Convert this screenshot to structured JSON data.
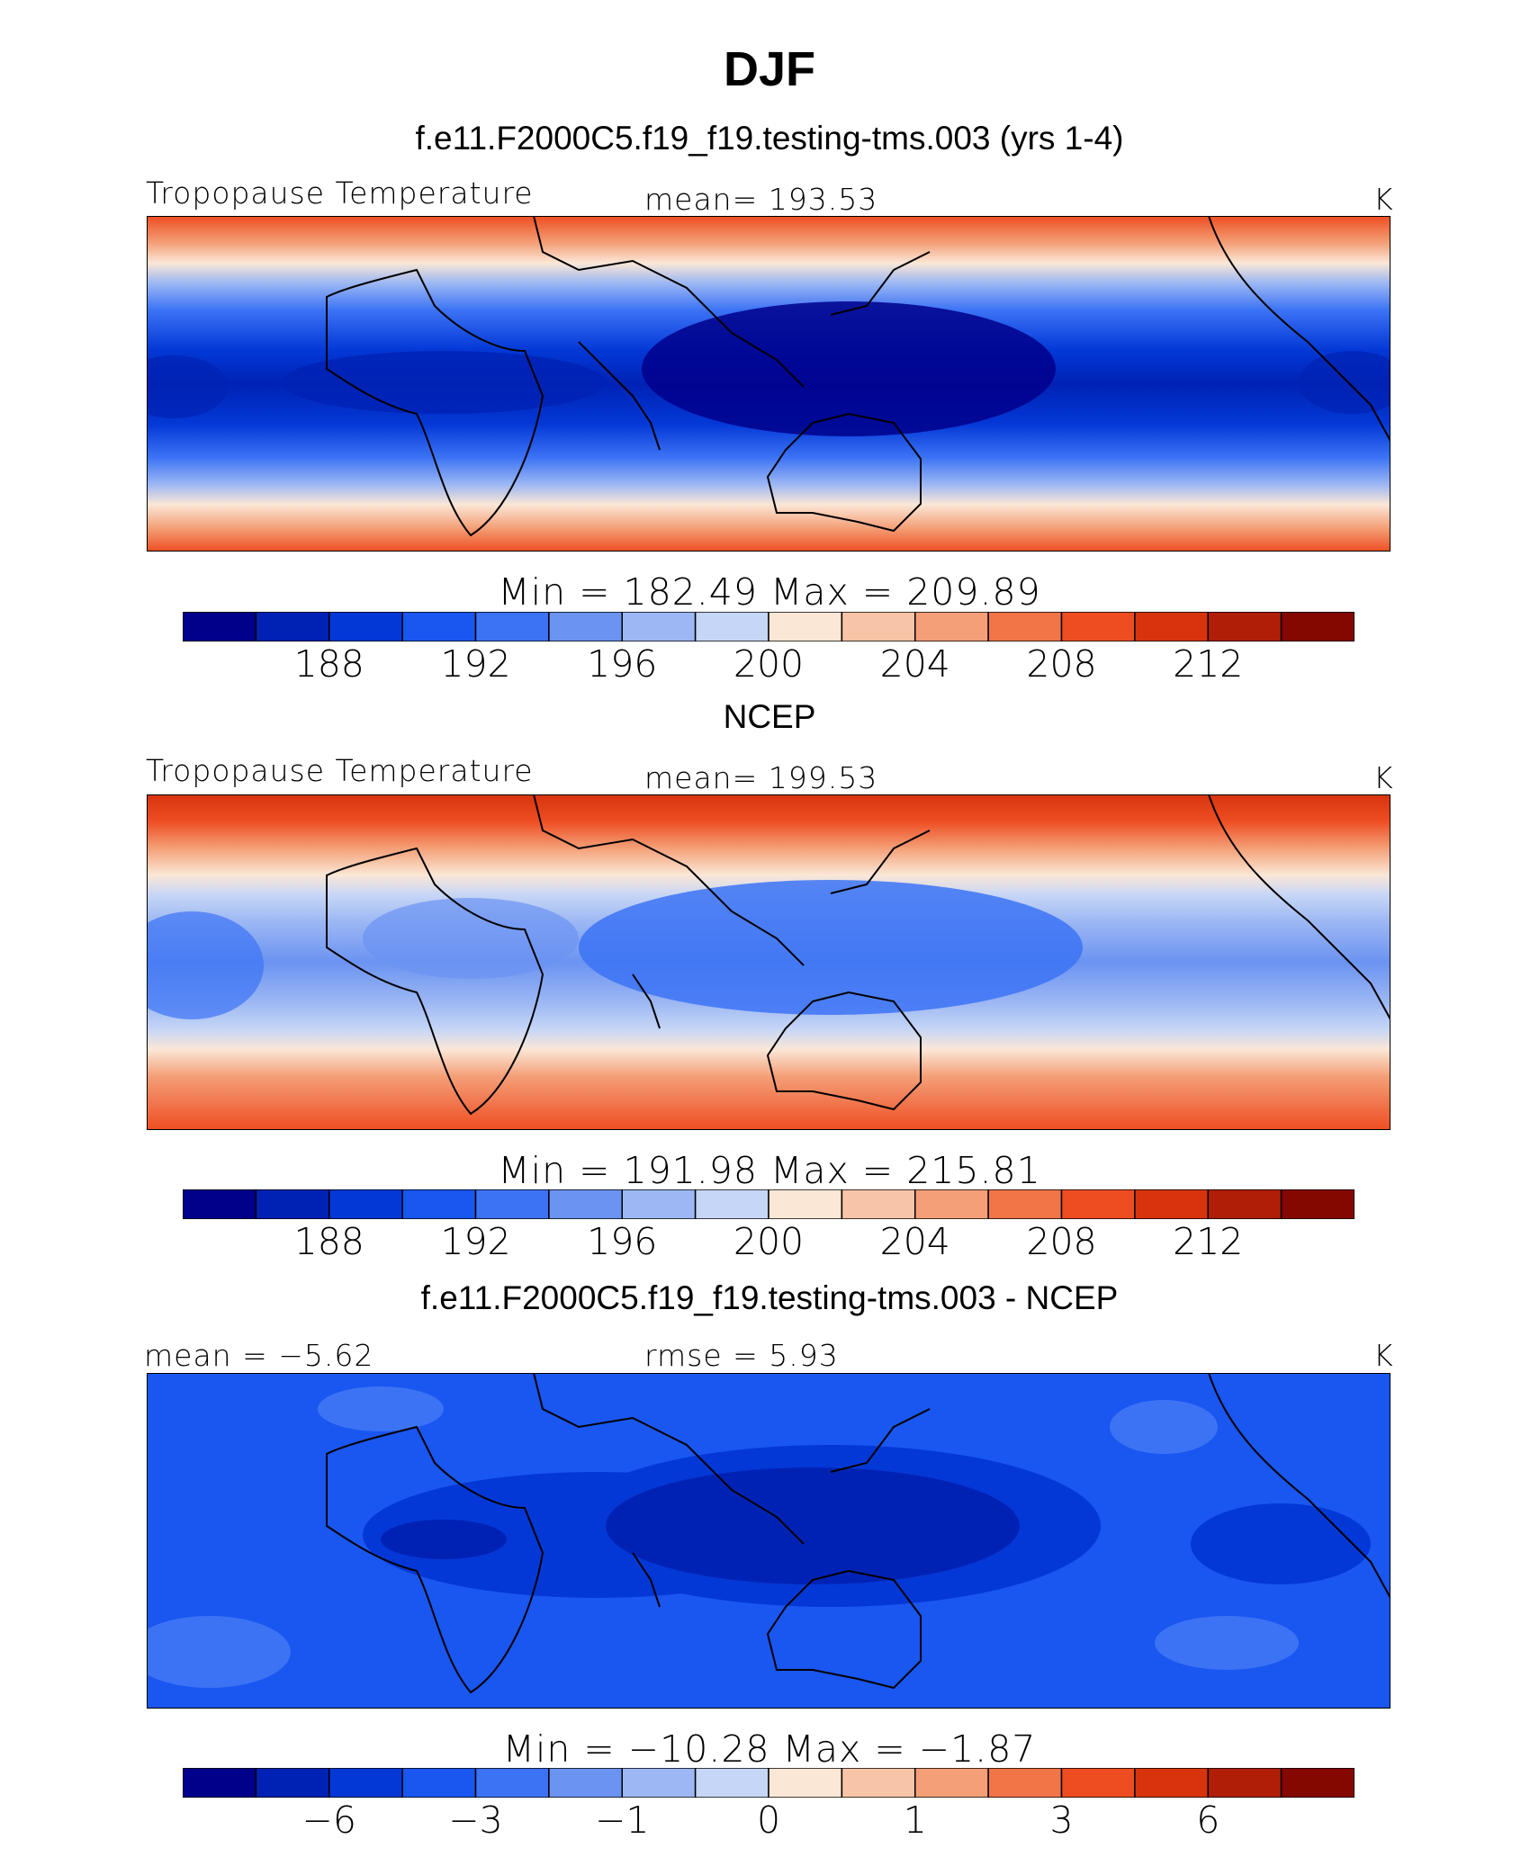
{
  "title": "DJF",
  "colorbar_colors": [
    "#00008b",
    "#0022b4",
    "#0338d6",
    "#1a56f0",
    "#3c73f5",
    "#6b93f2",
    "#9cb7f3",
    "#c6d6f6",
    "#fbe7d6",
    "#f7c4a7",
    "#f49f77",
    "#f27548",
    "#ee4d22",
    "#d7340e",
    "#b01e07",
    "#850800"
  ],
  "panels": [
    {
      "title": "f.e11.F2000C5.f19_f19.testing-tms.003 (yrs 1-4)",
      "left_label": "Tropopause Temperature",
      "center_label": "mean= 193.53",
      "right_label": "K",
      "minmax": "Min = 182.49 Max = 209.89",
      "ticks": [
        "188",
        "192",
        "196",
        "200",
        "204",
        "208",
        "212"
      ]
    },
    {
      "title": "NCEP",
      "left_label": "Tropopause Temperature",
      "center_label": "mean= 199.53",
      "right_label": "K",
      "minmax": "Min = 191.98 Max = 215.81",
      "ticks": [
        "188",
        "192",
        "196",
        "200",
        "204",
        "208",
        "212"
      ]
    },
    {
      "title": "f.e11.F2000C5.f19_f19.testing-tms.003 - NCEP",
      "left_label": "mean = −5.62",
      "center_label": "rmse = 5.93",
      "right_label": "K",
      "minmax": "Min = −10.28 Max = −1.87",
      "ticks": [
        "−6",
        "−3",
        "−1",
        "0",
        "1",
        "3",
        "6"
      ]
    }
  ],
  "chart_data": {
    "type": "heatmap",
    "season": "DJF",
    "panels": [
      {
        "panel": "model",
        "variable": "Tropopause Temperature",
        "units": "K",
        "mean": 193.53,
        "min": 182.49,
        "max": 209.89,
        "colorbar_ticks": [
          188,
          192,
          196,
          200,
          204,
          208,
          212
        ]
      },
      {
        "panel": "NCEP",
        "variable": "Tropopause Temperature",
        "units": "K",
        "mean": 199.53,
        "min": 191.98,
        "max": 215.81,
        "colorbar_ticks": [
          188,
          192,
          196,
          200,
          204,
          208,
          212
        ]
      },
      {
        "panel": "difference",
        "units": "K",
        "mean": -5.62,
        "rmse": 5.93,
        "min": -10.28,
        "max": -1.87,
        "colorbar_ticks": [
          -6,
          -3,
          -1,
          0,
          1,
          3,
          6
        ]
      }
    ]
  }
}
